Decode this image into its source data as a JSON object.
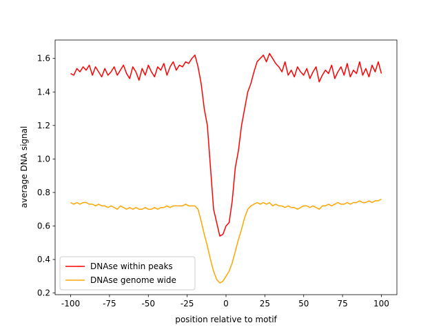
{
  "chart_data": {
    "type": "line",
    "xlabel": "position relative to motif",
    "ylabel": "average DNA signal",
    "x": [
      -100,
      -98,
      -96,
      -94,
      -92,
      -90,
      -88,
      -86,
      -84,
      -82,
      -80,
      -78,
      -76,
      -74,
      -72,
      -70,
      -68,
      -66,
      -64,
      -62,
      -60,
      -58,
      -56,
      -54,
      -52,
      -50,
      -48,
      -46,
      -44,
      -42,
      -40,
      -38,
      -36,
      -34,
      -32,
      -30,
      -28,
      -26,
      -24,
      -22,
      -20,
      -18,
      -16,
      -14,
      -12,
      -10,
      -8,
      -6,
      -4,
      -2,
      0,
      2,
      4,
      6,
      8,
      10,
      12,
      14,
      16,
      18,
      20,
      22,
      24,
      26,
      28,
      30,
      32,
      34,
      36,
      38,
      40,
      42,
      44,
      46,
      48,
      50,
      52,
      54,
      56,
      58,
      60,
      62,
      64,
      66,
      68,
      70,
      72,
      74,
      76,
      78,
      80,
      82,
      84,
      86,
      88,
      90,
      92,
      94,
      96,
      98,
      100
    ],
    "series": [
      {
        "name": "DNAse within peaks",
        "color": "#ff0000",
        "values": [
          1.51,
          1.5,
          1.54,
          1.52,
          1.55,
          1.53,
          1.56,
          1.5,
          1.55,
          1.52,
          1.49,
          1.54,
          1.5,
          1.52,
          1.55,
          1.5,
          1.53,
          1.56,
          1.51,
          1.48,
          1.55,
          1.52,
          1.47,
          1.54,
          1.5,
          1.56,
          1.52,
          1.49,
          1.55,
          1.53,
          1.57,
          1.5,
          1.55,
          1.58,
          1.53,
          1.56,
          1.55,
          1.58,
          1.57,
          1.6,
          1.62,
          1.55,
          1.45,
          1.3,
          1.2,
          0.95,
          0.7,
          0.62,
          0.54,
          0.55,
          0.6,
          0.62,
          0.75,
          0.95,
          1.05,
          1.2,
          1.3,
          1.4,
          1.45,
          1.52,
          1.58,
          1.6,
          1.62,
          1.58,
          1.63,
          1.6,
          1.57,
          1.55,
          1.52,
          1.58,
          1.5,
          1.53,
          1.49,
          1.55,
          1.52,
          1.5,
          1.54,
          1.48,
          1.52,
          1.55,
          1.46,
          1.5,
          1.53,
          1.51,
          1.56,
          1.48,
          1.52,
          1.55,
          1.5,
          1.57,
          1.49,
          1.53,
          1.51,
          1.58,
          1.5,
          1.54,
          1.49,
          1.56,
          1.52,
          1.58,
          1.51
        ]
      },
      {
        "name": "DNAse genome wide",
        "color": "#ffa500",
        "values": [
          0.74,
          0.73,
          0.74,
          0.73,
          0.74,
          0.74,
          0.73,
          0.73,
          0.72,
          0.73,
          0.72,
          0.72,
          0.71,
          0.72,
          0.71,
          0.7,
          0.72,
          0.71,
          0.7,
          0.71,
          0.7,
          0.71,
          0.7,
          0.7,
          0.71,
          0.7,
          0.7,
          0.71,
          0.7,
          0.71,
          0.71,
          0.72,
          0.71,
          0.72,
          0.72,
          0.72,
          0.72,
          0.73,
          0.72,
          0.72,
          0.72,
          0.7,
          0.63,
          0.55,
          0.48,
          0.4,
          0.33,
          0.28,
          0.26,
          0.27,
          0.3,
          0.33,
          0.38,
          0.45,
          0.52,
          0.58,
          0.65,
          0.7,
          0.72,
          0.73,
          0.74,
          0.73,
          0.74,
          0.73,
          0.74,
          0.72,
          0.73,
          0.72,
          0.72,
          0.71,
          0.72,
          0.71,
          0.71,
          0.7,
          0.71,
          0.72,
          0.72,
          0.71,
          0.72,
          0.71,
          0.7,
          0.72,
          0.72,
          0.73,
          0.72,
          0.73,
          0.74,
          0.73,
          0.73,
          0.74,
          0.73,
          0.74,
          0.74,
          0.75,
          0.74,
          0.74,
          0.75,
          0.74,
          0.75,
          0.75,
          0.76
        ]
      }
    ],
    "xlim": [
      -110,
      110
    ],
    "ylim": [
      0.19,
      1.71
    ],
    "xticks": [
      -100,
      -75,
      -50,
      -25,
      0,
      25,
      50,
      75,
      100
    ],
    "yticks": [
      0.2,
      0.4,
      0.6,
      0.8,
      {
        "value": 1,
        "label": "1.0"
      },
      1.2,
      1.4,
      1.6
    ],
    "legend": "lower left"
  }
}
